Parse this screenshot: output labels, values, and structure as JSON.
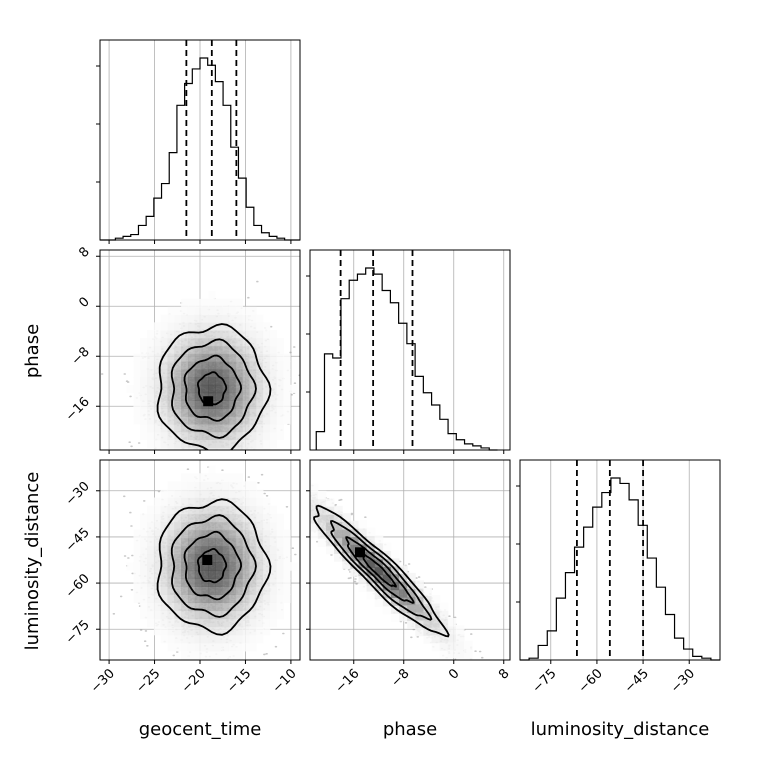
{
  "chart_data": {
    "type": "corner",
    "parameters": [
      "geocent_time",
      "phase",
      "luminosity_distance"
    ],
    "grid": true,
    "axes": {
      "geocent_time": {
        "range": [
          -31,
          -9
        ],
        "ticks": [
          -30,
          -25,
          -20,
          -15,
          -10
        ]
      },
      "phase": {
        "range": [
          -23,
          9
        ],
        "ticks": [
          -16,
          -8,
          0,
          8
        ]
      },
      "luminosity_distance": {
        "range": [
          -85,
          -20
        ],
        "ticks": [
          -75,
          -60,
          -45,
          -30
        ]
      }
    },
    "quantiles": {
      "geocent_time": [
        -21.5,
        -18.7,
        -16.0
      ],
      "phase": [
        -18.1,
        -12.9,
        -6.6
      ],
      "luminosity_distance": [
        -66.5,
        -55.8,
        -45.0
      ]
    },
    "histograms": {
      "geocent_time": {
        "bins": [
          -31,
          -9
        ],
        "counts": [
          0.0,
          0.0,
          0.01,
          0.02,
          0.03,
          0.08,
          0.13,
          0.23,
          0.31,
          0.48,
          0.74,
          0.86,
          0.94,
          1.0,
          0.96,
          0.87,
          0.74,
          0.51,
          0.34,
          0.18,
          0.08,
          0.04,
          0.02,
          0.01,
          0.0,
          0.0
        ]
      },
      "phase": {
        "bins": [
          -22,
          7
        ],
        "counts": [
          0.09,
          0.47,
          0.45,
          0.74,
          0.83,
          0.86,
          0.89,
          0.86,
          0.78,
          0.72,
          0.62,
          0.52,
          0.36,
          0.28,
          0.22,
          0.15,
          0.08,
          0.05,
          0.03,
          0.02,
          0.01,
          0.0
        ]
      },
      "luminosity_distance": {
        "bins": [
          -85,
          -20
        ],
        "counts": [
          0.0,
          0.01,
          0.08,
          0.16,
          0.34,
          0.48,
          0.62,
          0.73,
          0.84,
          0.92,
          1.0,
          0.97,
          0.88,
          0.74,
          0.56,
          0.4,
          0.25,
          0.12,
          0.06,
          0.02,
          0.01,
          0.0
        ]
      }
    },
    "pairs": [
      {
        "x": "geocent_time",
        "y": "phase",
        "mean": [
          -18.7,
          -13.2
        ],
        "spread": [
          3.0,
          5.0
        ],
        "correlation": 0.0,
        "peak": [
          -19.1,
          -15.2
        ]
      },
      {
        "x": "geocent_time",
        "y": "luminosity_distance",
        "mean": [
          -18.7,
          -54.5
        ],
        "spread": [
          3.0,
          10.5
        ],
        "correlation": 0.0,
        "peak": [
          -19.2,
          -52.5
        ]
      },
      {
        "x": "phase",
        "y": "luminosity_distance",
        "mean": [
          -12.0,
          -56.0
        ],
        "spread": [
          5.2,
          10.3
        ],
        "correlation": -0.94,
        "peak": [
          -15.0,
          -50.0
        ]
      }
    ]
  }
}
